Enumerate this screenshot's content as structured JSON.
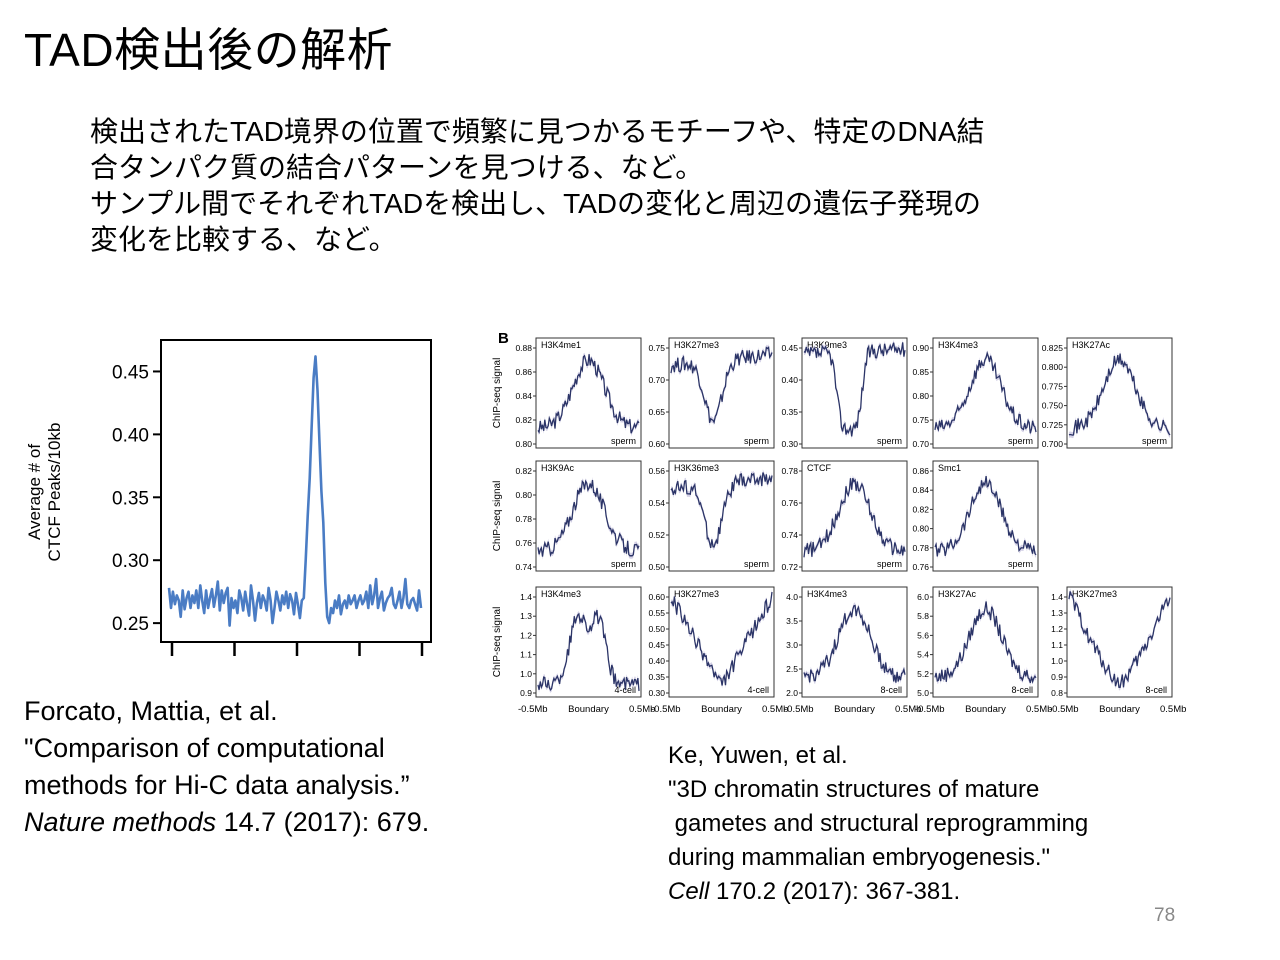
{
  "slide": {
    "title": "TAD検出後の解析",
    "body": [
      "検出されたTAD境界の位置で頻繁に見つかるモチーフや、特定のDNA結",
      "合タンパク質の結合パターンを見つける、など。",
      "サンプル間でそれぞれTADを検出し、TADの変化と周辺の遺伝子発現の",
      "変化を比較する、など。"
    ],
    "page_number": "78"
  },
  "citation_a": {
    "line1": "Forcato, Mattia, et al.",
    "line2": "\"Comparison of computational",
    "line3": "methods for Hi-C data analysis.”",
    "journal": "Nature methods",
    "ref": " 14.7 (2017): 679."
  },
  "citation_b": {
    "line1": "Ke, Yuwen, et al.",
    "line2": "\"3D chromatin structures of mature",
    "line3": " gametes and structural reprogramming",
    "line4": "during mammalian embryogenesis.\"",
    "journal": "Cell",
    "ref": " 170.2 (2017): 367-381."
  },
  "chart_data": [
    {
      "type": "line",
      "ylabel": "Average # of CTCF Peaks/10kb",
      "xlabel": "",
      "yticks": [
        "0.25",
        "0.30",
        "0.35",
        "0.40",
        "0.45"
      ],
      "ylim": [
        0.235,
        0.475
      ],
      "xticks": 5,
      "grid": false,
      "color": "#4a7cc4",
      "y": [
        0.278,
        0.262,
        0.275,
        0.265,
        0.272,
        0.268,
        0.255,
        0.276,
        0.261,
        0.27,
        0.275,
        0.262,
        0.272,
        0.266,
        0.276,
        0.262,
        0.28,
        0.268,
        0.258,
        0.276,
        0.262,
        0.27,
        0.277,
        0.263,
        0.272,
        0.283,
        0.26,
        0.276,
        0.266,
        0.274,
        0.278,
        0.248,
        0.27,
        0.262,
        0.268,
        0.258,
        0.276,
        0.27,
        0.26,
        0.275,
        0.265,
        0.256,
        0.28,
        0.268,
        0.252,
        0.266,
        0.274,
        0.262,
        0.272,
        0.268,
        0.26,
        0.278,
        0.268,
        0.25,
        0.262,
        0.275,
        0.268,
        0.26,
        0.272,
        0.265,
        0.275,
        0.262,
        0.273,
        0.268,
        0.257,
        0.274,
        0.265,
        0.254,
        0.268,
        0.27,
        0.3,
        0.335,
        0.365,
        0.405,
        0.445,
        0.462,
        0.435,
        0.395,
        0.355,
        0.33,
        0.282,
        0.255,
        0.25,
        0.262,
        0.258,
        0.268,
        0.262,
        0.272,
        0.257,
        0.265,
        0.268,
        0.262,
        0.272,
        0.265,
        0.268,
        0.272,
        0.262,
        0.268,
        0.272,
        0.265,
        0.268,
        0.275,
        0.262,
        0.28,
        0.265,
        0.272,
        0.285,
        0.262,
        0.27,
        0.275,
        0.26,
        0.266,
        0.27,
        0.272,
        0.278,
        0.265,
        0.262,
        0.268,
        0.275,
        0.262,
        0.27,
        0.285,
        0.265,
        0.262,
        0.268,
        0.27,
        0.265,
        0.26,
        0.276,
        0.262
      ]
    },
    {
      "type": "line",
      "panel_label": "B",
      "ylabel": "ChIP-seq signal",
      "xticks": [
        "-0.5Mb",
        "Boundary",
        "0.5Mb"
      ],
      "line_color": "#2b3467",
      "band_color": "#c9c5e0",
      "panels": [
        {
          "row": 0,
          "col": 0,
          "mark": "H3K4me1",
          "sample": "sperm",
          "shape": "peak",
          "yticks": [
            "0.80",
            "0.82",
            "0.84",
            "0.86",
            "0.88"
          ]
        },
        {
          "row": 0,
          "col": 1,
          "mark": "H3K27me3",
          "sample": "sperm",
          "shape": "dip",
          "yticks": [
            "0.60",
            "0.65",
            "0.70",
            "0.75"
          ]
        },
        {
          "row": 0,
          "col": 2,
          "mark": "H3K9me3",
          "sample": "sperm",
          "shape": "deepdip",
          "yticks": [
            "0.30",
            "0.35",
            "0.40",
            "0.45"
          ]
        },
        {
          "row": 0,
          "col": 3,
          "mark": "H3K4me3",
          "sample": "sperm",
          "shape": "peak",
          "yticks": [
            "0.70",
            "0.75",
            "0.80",
            "0.85",
            "0.90"
          ]
        },
        {
          "row": 0,
          "col": 4,
          "mark": "H3K27Ac",
          "sample": "sperm",
          "shape": "peak",
          "yticks": [
            "0.700",
            "0.725",
            "0.750",
            "0.775",
            "0.800",
            "0.825"
          ]
        },
        {
          "row": 1,
          "col": 0,
          "mark": "H3K9Ac",
          "sample": "sperm",
          "shape": "peak",
          "yticks": [
            "0.74",
            "0.76",
            "0.78",
            "0.80",
            "0.82"
          ]
        },
        {
          "row": 1,
          "col": 1,
          "mark": "H3K36me3",
          "sample": "sperm",
          "shape": "dip",
          "yticks": [
            "0.50",
            "0.52",
            "0.54",
            "0.56"
          ]
        },
        {
          "row": 1,
          "col": 2,
          "mark": "CTCF",
          "sample": "sperm",
          "shape": "peak",
          "yticks": [
            "0.72",
            "0.74",
            "0.76",
            "0.78"
          ]
        },
        {
          "row": 1,
          "col": 3,
          "mark": "Smc1",
          "sample": "sperm",
          "shape": "peak",
          "yticks": [
            "0.76",
            "0.78",
            "0.80",
            "0.82",
            "0.84",
            "0.86"
          ]
        },
        {
          "row": 2,
          "col": 0,
          "mark": "H3K4me3",
          "sample": "4-cell",
          "shape": "doublepeak",
          "yticks": [
            "0.9",
            "1.0",
            "1.1",
            "1.2",
            "1.3",
            "1.4"
          ]
        },
        {
          "row": 2,
          "col": 1,
          "mark": "H3K27me3",
          "sample": "4-cell",
          "shape": "vdip",
          "yticks": [
            "0.30",
            "0.35",
            "0.40",
            "0.45",
            "0.50",
            "0.55",
            "0.60"
          ]
        },
        {
          "row": 2,
          "col": 2,
          "mark": "H3K4me3",
          "sample": "8-cell",
          "shape": "peak",
          "yticks": [
            "2.0",
            "2.5",
            "3.0",
            "3.5",
            "4.0"
          ]
        },
        {
          "row": 2,
          "col": 3,
          "mark": "H3K27Ac",
          "sample": "8-cell",
          "shape": "peak",
          "yticks": [
            "5.0",
            "5.2",
            "5.4",
            "5.6",
            "5.8",
            "6.0"
          ]
        },
        {
          "row": 2,
          "col": 4,
          "mark": "H3K27me3",
          "sample": "8-cell",
          "shape": "udip",
          "yticks": [
            "0.8",
            "0.9",
            "1.0",
            "1.1",
            "1.2",
            "1.3",
            "1.4"
          ]
        }
      ]
    }
  ]
}
